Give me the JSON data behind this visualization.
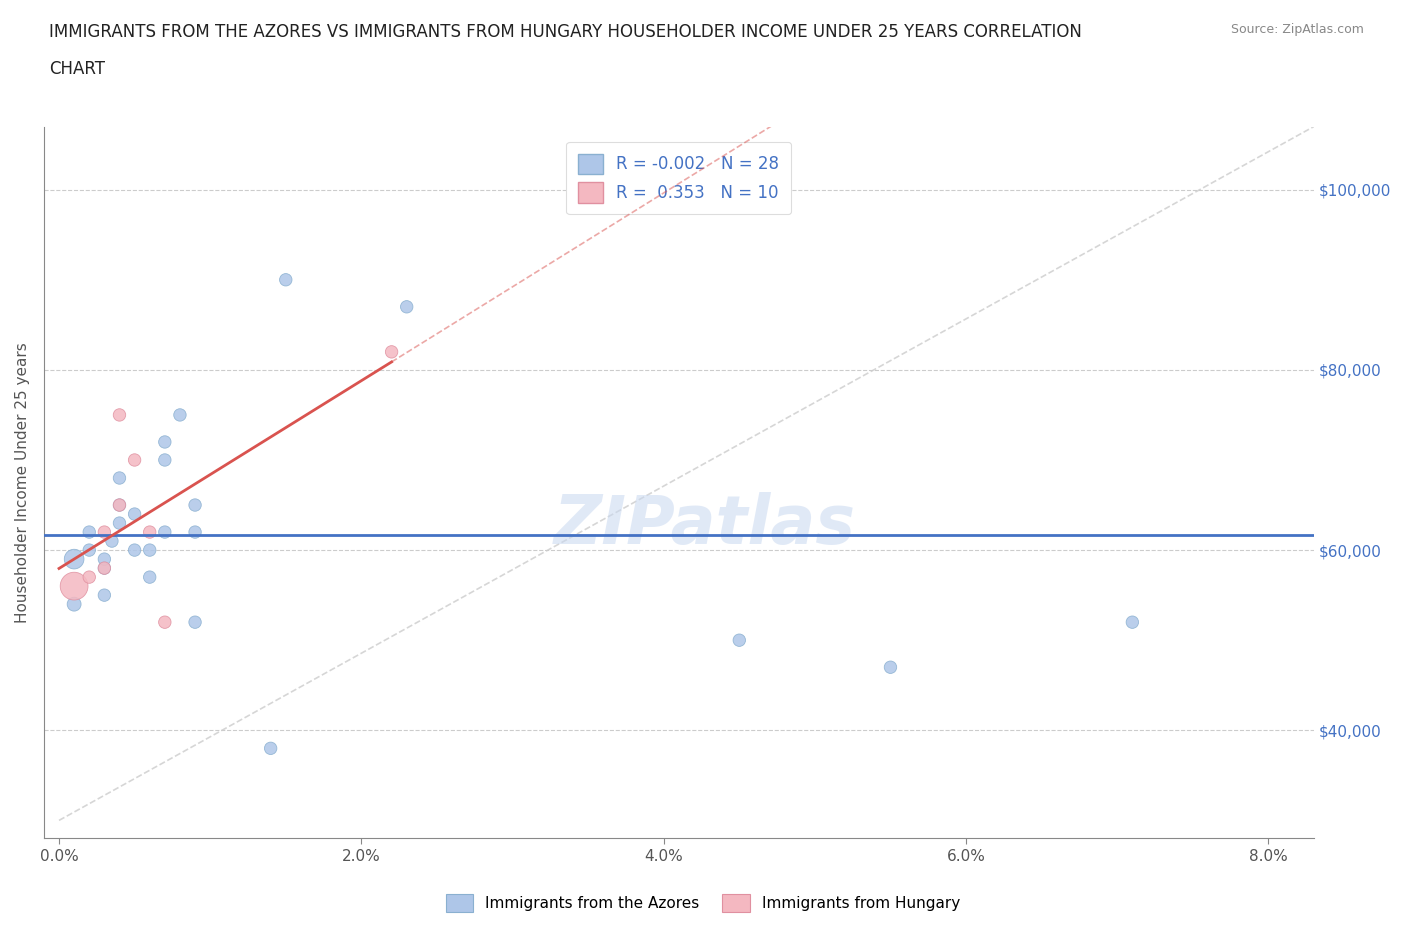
{
  "title_line1": "IMMIGRANTS FROM THE AZORES VS IMMIGRANTS FROM HUNGARY HOUSEHOLDER INCOME UNDER 25 YEARS CORRELATION",
  "title_line2": "CHART",
  "source": "Source: ZipAtlas.com",
  "ylabel": "Householder Income Under 25 years",
  "xlabel_ticks": [
    "0.0%",
    "2.0%",
    "4.0%",
    "6.0%",
    "8.0%"
  ],
  "xlabel_values": [
    0.0,
    0.02,
    0.04,
    0.06,
    0.08
  ],
  "ylim": [
    28000,
    107000
  ],
  "xlim": [
    -0.001,
    0.083
  ],
  "ytick_labels": [
    "$40,000",
    "$60,000",
    "$80,000",
    "$100,000"
  ],
  "ytick_values": [
    40000,
    60000,
    80000,
    100000
  ],
  "r_azores": -0.002,
  "n_azores": 28,
  "r_hungary": 0.353,
  "n_hungary": 10,
  "azores_color": "#aec6e8",
  "hungary_color": "#f4b8c1",
  "trendline_azores_color": "#4472c4",
  "trendline_hungary_color": "#d9534f",
  "grid_color": "#cccccc",
  "watermark": "ZIPatlas",
  "azores_x": [
    0.001,
    0.001,
    0.002,
    0.002,
    0.003,
    0.003,
    0.003,
    0.0035,
    0.004,
    0.004,
    0.004,
    0.005,
    0.005,
    0.006,
    0.006,
    0.007,
    0.007,
    0.007,
    0.008,
    0.009,
    0.009,
    0.009,
    0.014,
    0.015,
    0.023,
    0.045,
    0.055,
    0.071
  ],
  "azores_y": [
    59000,
    54000,
    62000,
    60000,
    55000,
    58000,
    59000,
    61000,
    63000,
    65000,
    68000,
    64000,
    60000,
    60000,
    57000,
    62000,
    70000,
    72000,
    75000,
    62000,
    65000,
    52000,
    38000,
    90000,
    87000,
    50000,
    47000,
    52000
  ],
  "azores_size": [
    200,
    100,
    80,
    80,
    80,
    80,
    80,
    80,
    80,
    80,
    80,
    80,
    80,
    80,
    80,
    80,
    80,
    80,
    80,
    80,
    80,
    80,
    80,
    80,
    80,
    80,
    80,
    80
  ],
  "azores_size_extra": [
    0,
    0,
    0,
    0,
    0,
    0,
    0,
    0,
    0,
    0,
    0,
    0,
    0,
    0,
    0,
    0,
    0,
    0,
    0,
    0,
    0,
    0,
    0,
    0,
    0,
    0,
    0,
    0
  ],
  "hungary_x": [
    0.001,
    0.002,
    0.003,
    0.003,
    0.004,
    0.004,
    0.005,
    0.006,
    0.007,
    0.022
  ],
  "hungary_y": [
    56000,
    57000,
    58000,
    62000,
    65000,
    75000,
    70000,
    62000,
    52000,
    82000
  ],
  "hungary_size": [
    400,
    80,
    80,
    80,
    80,
    80,
    80,
    80,
    80,
    80
  ],
  "azores_trendline_y": 60000,
  "hungary_trendline_x0": 0.0,
  "hungary_trendline_y0": 50000,
  "hungary_trendline_x1": 0.022,
  "hungary_trendline_y1": 78000,
  "hungary_trendline_ext_x1": 0.08,
  "hungary_trendline_ext_y1": 100000
}
